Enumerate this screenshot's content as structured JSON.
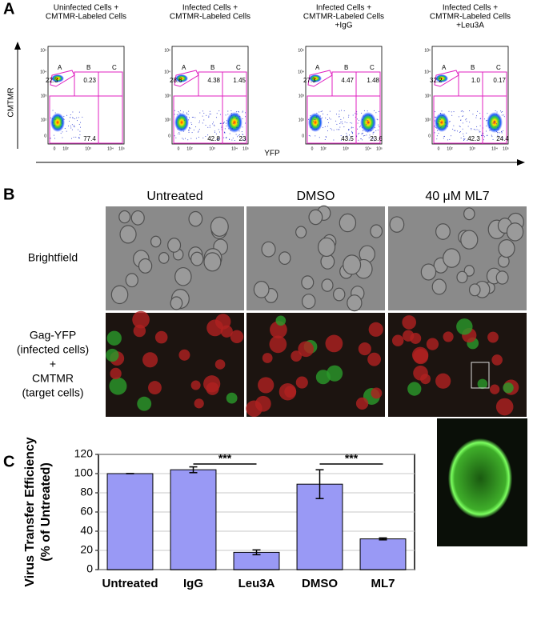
{
  "panel_a": {
    "letter": "A",
    "y_axis_label": "CMTMR",
    "x_axis_label": "YFP",
    "y_ticks": [
      "10⁵",
      "10⁴",
      "10³",
      "10²",
      "0"
    ],
    "x_ticks": [
      "0",
      "10²",
      "10³",
      "10⁴",
      "10⁵"
    ],
    "gate_names": [
      "A",
      "B",
      "C"
    ],
    "plots": [
      {
        "title": [
          "Uninfected Cells +",
          "CMTMR-Labeled Cells"
        ],
        "a": "22.3",
        "b": "0.23",
        "lower_left": "77.4"
      },
      {
        "title": [
          "Infected Cells +",
          "CMTMR-Labeled Cells"
        ],
        "a": "28.6",
        "b": "4.38",
        "c": "1.45",
        "lower_left": "42.8",
        "lower_right": "23"
      },
      {
        "title": [
          "Infected Cells +",
          "CMTMR-Labeled Cells",
          "+IgG"
        ],
        "a": "27.3",
        "b": "4.47",
        "c": "1.48",
        "lower_left": "43.5",
        "lower_right": "23.6"
      },
      {
        "title": [
          "Infected Cells +",
          "CMTMR-Labeled Cells",
          "+Leu3A"
        ],
        "a": "32.2",
        "b": "1.0",
        "c": "0.17",
        "lower_left": "42.3",
        "lower_right": "24.4"
      }
    ]
  },
  "panel_b": {
    "letter": "B",
    "columns": [
      "Untreated",
      "DMSO",
      "40 μM ML7"
    ],
    "rows": [
      [
        "Brightfield"
      ],
      [
        "Gag-YFP",
        "(infected cells)",
        "+",
        "CMTMR",
        "(target cells)"
      ]
    ]
  },
  "chart_data": {
    "type": "bar",
    "letter": "C",
    "y_label": [
      "Virus Transfer Efficiency",
      "(% of Untreated)"
    ],
    "categories": [
      "Untreated",
      "IgG",
      "Leu3A",
      "DMSO",
      "ML7"
    ],
    "values": [
      100,
      104,
      18,
      89,
      32
    ],
    "errors": [
      0,
      3,
      2.5,
      15,
      1
    ],
    "color": "#9999f5",
    "ylim": [
      0,
      120
    ],
    "yticks": [
      0,
      20,
      40,
      60,
      80,
      100,
      120
    ],
    "grid": true,
    "annotations": [
      {
        "text": "***",
        "x": [
          1,
          2
        ],
        "y": 110
      },
      {
        "text": "***",
        "x": [
          3,
          4
        ],
        "y": 110
      }
    ]
  }
}
